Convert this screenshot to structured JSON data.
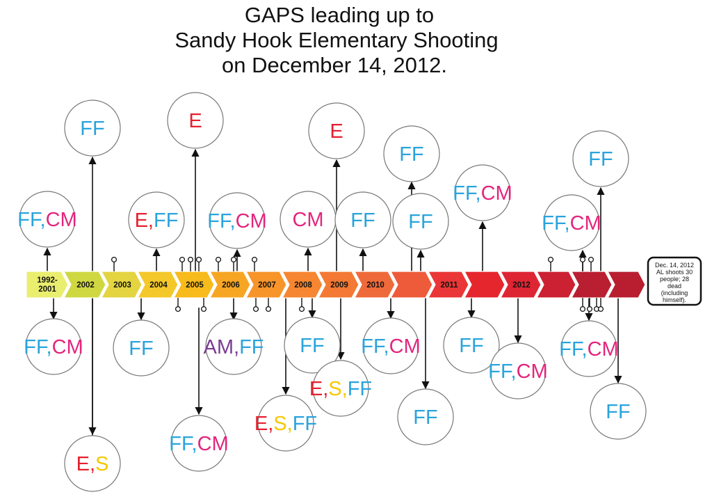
{
  "title": {
    "lines": [
      "GAPS leading up to",
      "Sandy Hook Elementary Shooting",
      "on December 14, 2012."
    ]
  },
  "colors": {
    "E": "#e4202e",
    "S": "#f5c800",
    "FF": "#2aa4dc",
    "CM": "#e3257d",
    "AM": "#7a3c93",
    "line": "#111111",
    "circle": "#777777"
  },
  "timeline": {
    "segments": [
      {
        "label": "1992-\n2001",
        "color": "#eaee6e"
      },
      {
        "label": "2002",
        "color": "#cfd841"
      },
      {
        "label": "2003",
        "color": "#e3d440"
      },
      {
        "label": "2004",
        "color": "#f4c82a"
      },
      {
        "label": "2005",
        "color": "#f8bb1c"
      },
      {
        "label": "2006",
        "color": "#f7a624"
      },
      {
        "label": "2007",
        "color": "#f7952a"
      },
      {
        "label": "2008",
        "color": "#f68631"
      },
      {
        "label": "2009",
        "color": "#f37934"
      },
      {
        "label": "2010",
        "color": "#ef6a3a"
      },
      {
        "label": "",
        "color": "#ee5b3a"
      },
      {
        "label": "2011",
        "color": "#ea3636"
      },
      {
        "label": "",
        "color": "#e6262d"
      },
      {
        "label": "2012",
        "color": "#de2533"
      },
      {
        "label": "",
        "color": "#cc2132"
      },
      {
        "label": "",
        "color": "#b91f30"
      },
      {
        "label": "",
        "color": "#b81e2f"
      }
    ]
  },
  "events": [
    {
      "id": "a",
      "items": [
        {
          "t": "FF",
          "c": "FF"
        },
        {
          "t": ",",
          "c": "FF"
        },
        {
          "t": "CM",
          "c": "CM"
        }
      ]
    },
    {
      "id": "b",
      "items": [
        {
          "t": "FF",
          "c": "FF"
        },
        {
          "t": ",",
          "c": "FF"
        },
        {
          "t": "CM",
          "c": "CM"
        }
      ]
    },
    {
      "id": "c",
      "items": [
        {
          "t": "FF",
          "c": "FF"
        }
      ]
    },
    {
      "id": "d",
      "items": [
        {
          "t": "E",
          "c": "E"
        },
        {
          "t": ",",
          "c": "E"
        },
        {
          "t": "S",
          "c": "S"
        }
      ]
    },
    {
      "id": "e",
      "items": [
        {
          "t": "E",
          "c": "E"
        },
        {
          "t": ",",
          "c": "E"
        },
        {
          "t": "FF",
          "c": "FF"
        }
      ]
    },
    {
      "id": "f",
      "items": [
        {
          "t": "FF",
          "c": "FF"
        }
      ]
    },
    {
      "id": "g",
      "items": [
        {
          "t": "E",
          "c": "E"
        }
      ]
    },
    {
      "id": "h",
      "items": [
        {
          "t": "FF",
          "c": "FF"
        },
        {
          "t": ",",
          "c": "FF"
        },
        {
          "t": "CM",
          "c": "CM"
        }
      ]
    },
    {
      "id": "i",
      "items": [
        {
          "t": "FF",
          "c": "FF"
        },
        {
          "t": ",",
          "c": "FF"
        },
        {
          "t": "CM",
          "c": "CM"
        }
      ]
    },
    {
      "id": "j",
      "items": [
        {
          "t": "AM",
          "c": "AM"
        },
        {
          "t": ",",
          "c": "AM"
        },
        {
          "t": "FF",
          "c": "FF"
        }
      ]
    },
    {
      "id": "k",
      "items": [
        {
          "t": "E",
          "c": "E"
        },
        {
          "t": ",",
          "c": "E"
        },
        {
          "t": "S",
          "c": "S"
        },
        {
          "t": ",",
          "c": "S"
        },
        {
          "t": "FF",
          "c": "FF"
        }
      ]
    },
    {
      "id": "l",
      "items": [
        {
          "t": "CM",
          "c": "CM"
        }
      ]
    },
    {
      "id": "m",
      "items": [
        {
          "t": "FF",
          "c": "FF"
        }
      ]
    },
    {
      "id": "n",
      "items": [
        {
          "t": "E",
          "c": "E"
        }
      ]
    },
    {
      "id": "o",
      "items": [
        {
          "t": "E",
          "c": "E"
        },
        {
          "t": ",",
          "c": "E"
        },
        {
          "t": "S",
          "c": "S"
        },
        {
          "t": ",",
          "c": "S"
        },
        {
          "t": "FF",
          "c": "FF"
        }
      ]
    },
    {
      "id": "p",
      "items": [
        {
          "t": "FF",
          "c": "FF"
        }
      ]
    },
    {
      "id": "q",
      "items": [
        {
          "t": "FF",
          "c": "FF"
        },
        {
          "t": ",",
          "c": "FF"
        },
        {
          "t": "CM",
          "c": "CM"
        }
      ]
    },
    {
      "id": "r",
      "items": [
        {
          "t": "FF",
          "c": "FF"
        }
      ]
    },
    {
      "id": "s",
      "items": [
        {
          "t": "FF",
          "c": "FF"
        }
      ]
    },
    {
      "id": "t",
      "items": [
        {
          "t": "FF",
          "c": "FF"
        }
      ]
    },
    {
      "id": "u",
      "items": [
        {
          "t": "FF",
          "c": "FF"
        },
        {
          "t": ",",
          "c": "FF"
        },
        {
          "t": "CM",
          "c": "CM"
        }
      ]
    },
    {
      "id": "v",
      "items": [
        {
          "t": "FF",
          "c": "FF"
        }
      ]
    },
    {
      "id": "w",
      "items": [
        {
          "t": "FF",
          "c": "FF"
        },
        {
          "t": ",",
          "c": "FF"
        },
        {
          "t": "CM",
          "c": "CM"
        }
      ]
    },
    {
      "id": "x",
      "items": [
        {
          "t": "FF",
          "c": "FF"
        },
        {
          "t": ",",
          "c": "FF"
        },
        {
          "t": "CM",
          "c": "CM"
        }
      ]
    },
    {
      "id": "y",
      "items": [
        {
          "t": "FF",
          "c": "FF"
        }
      ]
    },
    {
      "id": "z",
      "items": [
        {
          "t": "FF",
          "c": "FF"
        },
        {
          "t": ",",
          "c": "FF"
        },
        {
          "t": "CM",
          "c": "CM"
        }
      ]
    },
    {
      "id": "aa",
      "items": [
        {
          "t": "FF",
          "c": "FF"
        }
      ]
    }
  ],
  "end_box": {
    "lines": [
      "Dec. 14, 2012",
      "AL shoots 30",
      "people; 28",
      "dead",
      "(including",
      "himself)."
    ]
  }
}
